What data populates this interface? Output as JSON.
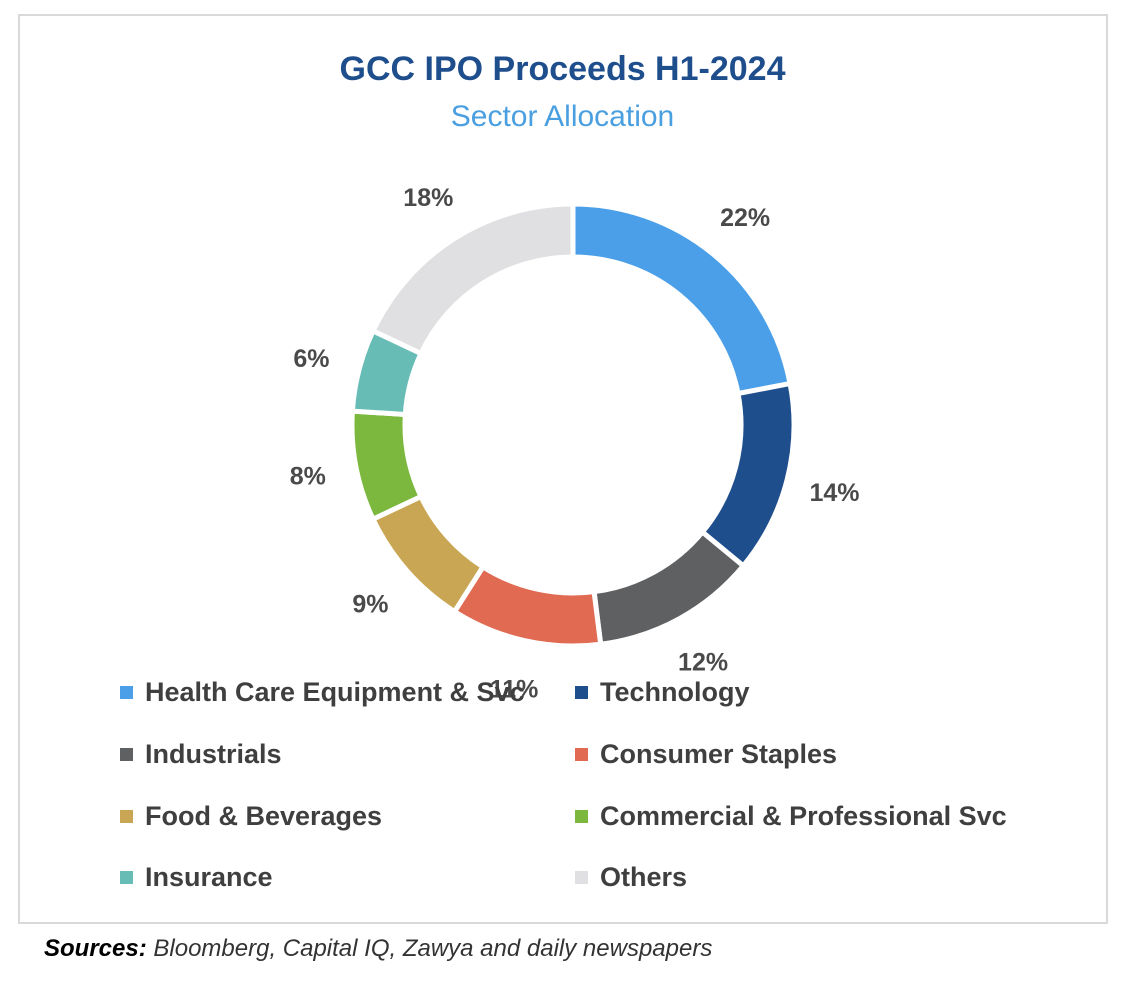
{
  "chart_data": {
    "type": "pie",
    "title": "GCC IPO Proceeds H1-2024",
    "subtitle": "Sector Allocation",
    "categories": [
      "Health Care Equipment & Svc",
      "Technology",
      "Industrials",
      "Consumer Staples",
      "Food & Beverages",
      "Commercial & Professional Svc",
      "Insurance",
      "Others"
    ],
    "values": [
      22,
      14,
      12,
      11,
      9,
      8,
      6,
      18
    ],
    "labels": [
      "22%",
      "14%",
      "12%",
      "11%",
      "9%",
      "8%",
      "6%",
      "18%"
    ],
    "colors": [
      "#4a9fe8",
      "#1f4e8c",
      "#5f6062",
      "#e06a52",
      "#c9a653",
      "#7bb83d",
      "#67bcb5",
      "#e0e0e2"
    ],
    "donut": true,
    "legend_position": "bottom"
  },
  "sources": {
    "label": "Sources:",
    "text": "Bloomberg, Capital IQ, Zawya and daily newspapers"
  }
}
